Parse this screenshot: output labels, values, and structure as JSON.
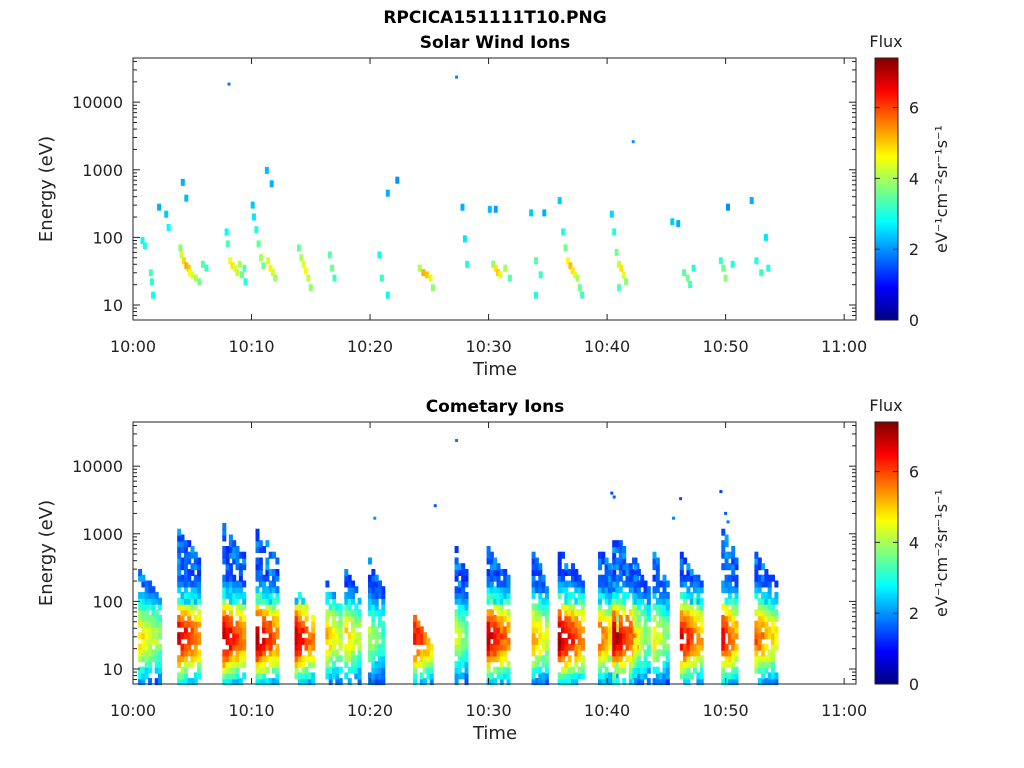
{
  "figure": {
    "title": "RPCICA151111T10.PNG"
  },
  "colorbar": {
    "title": "Flux",
    "unit_text": "eV⁻¹cm⁻²sr⁻¹s⁻¹",
    "ticks": [
      "0",
      "2",
      "4",
      "6"
    ],
    "range": [
      0,
      7.4
    ],
    "colormap": "jet",
    "colors": [
      "#00007f",
      "#0000ff",
      "#007fff",
      "#00ffff",
      "#7fff7f",
      "#ffff00",
      "#ff7f00",
      "#ff0000",
      "#7f0000"
    ]
  },
  "chart_data": [
    {
      "type": "heatmap",
      "title": "Solar Wind Ions",
      "xlabel": "Time",
      "ylabel": "Energy (eV)",
      "x_ticks": [
        "10:00",
        "10:10",
        "10:20",
        "10:30",
        "10:40",
        "10:50",
        "11:00"
      ],
      "x_tick_minutes": [
        0,
        10,
        20,
        30,
        40,
        50,
        60
      ],
      "xlim_minutes": [
        0,
        61
      ],
      "y_ticks": [
        "10",
        "100",
        "1000",
        "10000"
      ],
      "y_tick_values": [
        10,
        100,
        1000,
        10000
      ],
      "ylim": [
        6,
        45000
      ],
      "y_scale": "log",
      "points": [
        [
          0.8,
          90,
          2.8
        ],
        [
          1.0,
          75,
          3.0
        ],
        [
          1.5,
          30,
          3.3
        ],
        [
          1.6,
          22,
          3.1
        ],
        [
          1.7,
          14,
          2.9
        ],
        [
          2.2,
          280,
          2.2
        ],
        [
          2.8,
          220,
          2.4
        ],
        [
          3.0,
          140,
          2.8
        ],
        [
          4.0,
          70,
          3.8
        ],
        [
          4.1,
          55,
          4.3
        ],
        [
          4.3,
          45,
          4.9
        ],
        [
          4.5,
          38,
          5.2
        ],
        [
          4.7,
          35,
          5.0
        ],
        [
          4.8,
          30,
          4.6
        ],
        [
          5.0,
          28,
          4.4
        ],
        [
          5.3,
          25,
          4.0
        ],
        [
          5.6,
          22,
          3.6
        ],
        [
          5.9,
          40,
          3.4
        ],
        [
          6.2,
          35,
          3.2
        ],
        [
          4.2,
          650,
          2.2
        ],
        [
          4.5,
          380,
          2.3
        ],
        [
          7.9,
          120,
          2.8
        ],
        [
          8.0,
          80,
          3.3
        ],
        [
          8.2,
          45,
          4.5
        ],
        [
          8.4,
          38,
          4.8
        ],
        [
          8.6,
          35,
          4.4
        ],
        [
          8.8,
          30,
          4.2
        ],
        [
          9.0,
          40,
          4.0
        ],
        [
          9.2,
          28,
          3.6
        ],
        [
          9.4,
          35,
          3.4
        ],
        [
          8.1,
          18500,
          1.8
        ],
        [
          9.5,
          22,
          3.0
        ],
        [
          10.1,
          300,
          2.4
        ],
        [
          10.2,
          200,
          2.6
        ],
        [
          10.4,
          130,
          3.0
        ],
        [
          10.6,
          80,
          3.5
        ],
        [
          10.8,
          50,
          4.0
        ],
        [
          11.0,
          38,
          3.6
        ],
        [
          11.4,
          45,
          4.3
        ],
        [
          11.6,
          35,
          4.7
        ],
        [
          11.8,
          30,
          4.3
        ],
        [
          12.0,
          25,
          3.9
        ],
        [
          11.3,
          980,
          2.3
        ],
        [
          11.7,
          620,
          2.2
        ],
        [
          14.0,
          70,
          3.5
        ],
        [
          14.2,
          50,
          4.0
        ],
        [
          14.4,
          40,
          4.4
        ],
        [
          14.6,
          32,
          4.6
        ],
        [
          14.8,
          25,
          4.2
        ],
        [
          15.0,
          18,
          3.8
        ],
        [
          16.6,
          55,
          3.4
        ],
        [
          16.8,
          35,
          3.6
        ],
        [
          17.0,
          25,
          3.2
        ],
        [
          20.8,
          55,
          2.8
        ],
        [
          21.0,
          25,
          3.2
        ],
        [
          21.5,
          14,
          2.8
        ],
        [
          21.5,
          450,
          2.2
        ],
        [
          22.3,
          700,
          2.0
        ],
        [
          24.2,
          35,
          4.0
        ],
        [
          24.5,
          30,
          5.2
        ],
        [
          24.8,
          28,
          5.0
        ],
        [
          25.1,
          25,
          4.4
        ],
        [
          25.3,
          18,
          3.8
        ],
        [
          27.3,
          23500,
          1.9
        ],
        [
          27.8,
          280,
          2.2
        ],
        [
          28.0,
          95,
          2.6
        ],
        [
          28.2,
          40,
          3.0
        ],
        [
          30.1,
          260,
          2.3
        ],
        [
          30.6,
          260,
          2.1
        ],
        [
          30.4,
          40,
          3.8
        ],
        [
          30.6,
          35,
          4.8
        ],
        [
          30.8,
          30,
          5.0
        ],
        [
          31.0,
          28,
          4.4
        ],
        [
          31.4,
          35,
          4.0
        ],
        [
          31.8,
          25,
          3.4
        ],
        [
          33.6,
          230,
          2.4
        ],
        [
          34.0,
          45,
          3.4
        ],
        [
          34.4,
          28,
          3.2
        ],
        [
          34.0,
          14,
          3.0
        ],
        [
          34.7,
          230,
          2.2
        ],
        [
          36.0,
          350,
          2.4
        ],
        [
          36.3,
          120,
          3.0
        ],
        [
          36.5,
          70,
          3.6
        ],
        [
          36.7,
          45,
          4.6
        ],
        [
          36.9,
          38,
          5.1
        ],
        [
          37.1,
          32,
          4.8
        ],
        [
          37.3,
          28,
          4.4
        ],
        [
          37.5,
          25,
          4.0
        ],
        [
          37.7,
          18,
          3.6
        ],
        [
          37.9,
          14,
          3.2
        ],
        [
          40.4,
          220,
          2.5
        ],
        [
          40.6,
          120,
          3.0
        ],
        [
          40.8,
          60,
          3.6
        ],
        [
          41.0,
          40,
          4.2
        ],
        [
          41.2,
          35,
          4.8
        ],
        [
          41.4,
          28,
          4.4
        ],
        [
          41.6,
          22,
          3.8
        ],
        [
          41.0,
          18,
          3.4
        ],
        [
          42.2,
          2600,
          2.0
        ],
        [
          45.5,
          170,
          2.4
        ],
        [
          46.0,
          160,
          2.2
        ],
        [
          46.5,
          30,
          3.4
        ],
        [
          46.8,
          25,
          3.6
        ],
        [
          47.0,
          20,
          3.3
        ],
        [
          47.3,
          35,
          3.0
        ],
        [
          49.6,
          45,
          3.2
        ],
        [
          49.8,
          35,
          3.6
        ],
        [
          50.0,
          25,
          3.8
        ],
        [
          50.2,
          280,
          2.0
        ],
        [
          50.6,
          40,
          3.0
        ],
        [
          52.2,
          350,
          2.2
        ],
        [
          52.6,
          45,
          3.0
        ],
        [
          53.0,
          30,
          3.2
        ],
        [
          53.4,
          100,
          2.6
        ],
        [
          53.6,
          35,
          3.0
        ]
      ]
    },
    {
      "type": "heatmap",
      "title": "Cometary Ions",
      "xlabel": "Time",
      "ylabel": "Energy (eV)",
      "x_ticks": [
        "10:00",
        "10:10",
        "10:20",
        "10:30",
        "10:40",
        "10:50",
        "11:00"
      ],
      "x_tick_minutes": [
        0,
        10,
        20,
        30,
        40,
        50,
        60
      ],
      "xlim_minutes": [
        0,
        61
      ],
      "y_ticks": [
        "10",
        "100",
        "1000",
        "10000"
      ],
      "y_tick_values": [
        10,
        100,
        1000,
        10000
      ],
      "ylim": [
        6,
        45000
      ],
      "y_scale": "log",
      "bursts": [
        [
          0.6,
          1.8,
          4.6,
          300
        ],
        [
          3.9,
          1.9,
          6.6,
          1200
        ],
        [
          7.7,
          1.8,
          6.8,
          1300
        ],
        [
          10.5,
          1.9,
          6.8,
          1200
        ],
        [
          13.8,
          1.6,
          6.6,
          150
        ],
        [
          16.4,
          1.4,
          4.8,
          200
        ],
        [
          18.0,
          1.4,
          4.6,
          300
        ],
        [
          20.0,
          1.2,
          3.8,
          400
        ],
        [
          23.8,
          1.6,
          6.2,
          60
        ],
        [
          27.3,
          1.1,
          4.0,
          600
        ],
        [
          30.0,
          1.9,
          6.6,
          600
        ],
        [
          33.8,
          1.4,
          5.0,
          500
        ],
        [
          36.0,
          2.0,
          6.9,
          600
        ],
        [
          39.4,
          1.6,
          5.4,
          600
        ],
        [
          40.6,
          2.0,
          6.8,
          1000
        ],
        [
          42.4,
          1.2,
          4.4,
          400
        ],
        [
          44.0,
          1.3,
          4.4,
          500
        ],
        [
          46.3,
          1.8,
          6.4,
          500
        ],
        [
          49.8,
          1.4,
          6.2,
          1200
        ],
        [
          52.6,
          1.8,
          5.6,
          500
        ]
      ],
      "sparse_points": [
        [
          20.4,
          1700,
          2.0
        ],
        [
          25.5,
          2600,
          1.6
        ],
        [
          27.3,
          24000,
          1.8
        ],
        [
          40.4,
          4000,
          1.5
        ],
        [
          40.6,
          3500,
          1.6
        ],
        [
          46.2,
          3300,
          1.5
        ],
        [
          45.6,
          1700,
          1.9
        ],
        [
          49.6,
          4200,
          1.4
        ],
        [
          50.0,
          2000,
          1.6
        ],
        [
          50.2,
          1500,
          1.8
        ]
      ]
    }
  ]
}
